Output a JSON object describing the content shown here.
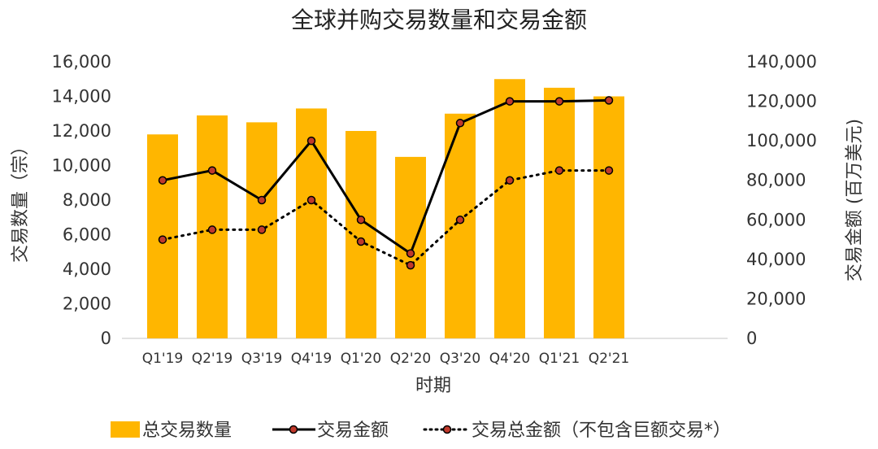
{
  "chart_data": {
    "type": "bar",
    "title": "全球并购交易数量和交易金额",
    "xlabel": "时期",
    "ylabel": "交易数量（宗）",
    "y2label": "交易金额 (百万美元)",
    "categories": [
      "Q1'19",
      "Q2'19",
      "Q3'19",
      "Q4'19",
      "Q1'20",
      "Q2'20",
      "Q3'20",
      "Q4'20",
      "Q1'21",
      "Q2'21"
    ],
    "ylim": [
      0,
      16000
    ],
    "y2lim": [
      0,
      140000
    ],
    "yticks": [
      "16,000",
      "14,000",
      "12,000",
      "10,000",
      "8,000",
      "6,000",
      "4,000",
      "2,000",
      "0"
    ],
    "y2ticks": [
      "140,000",
      "120,000",
      "100,000",
      "80,000",
      "60,000",
      "40,000",
      "20,000",
      "0"
    ],
    "series": [
      {
        "name": "总交易数量",
        "kind": "bar",
        "axis": "left",
        "color": "#FFB600",
        "values": [
          11800,
          12900,
          12500,
          13300,
          12000,
          10500,
          13000,
          15000,
          14500,
          14000
        ]
      },
      {
        "name": "交易金额",
        "kind": "line",
        "axis": "right",
        "color": "#000000",
        "marker_color": "#C0392B",
        "values": [
          80000,
          85000,
          70000,
          100000,
          60000,
          43000,
          109000,
          120000,
          120000,
          120500
        ]
      },
      {
        "name": "交易总金额（不包含巨额交易*）",
        "kind": "dotted-line",
        "axis": "right",
        "color": "#000000",
        "marker_color": "#C0392B",
        "values": [
          50000,
          55000,
          55000,
          70000,
          49000,
          37000,
          60000,
          80000,
          85000,
          85000
        ]
      }
    ],
    "grid": false,
    "legend_position": "bottom"
  }
}
